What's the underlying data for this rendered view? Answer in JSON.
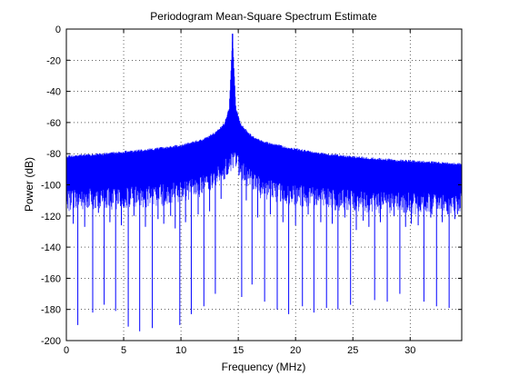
{
  "chart_data": {
    "type": "line",
    "title": "Periodogram Mean-Square Spectrum Estimate",
    "xlabel": "Frequency (MHz)",
    "ylabel": "Power (dB)",
    "xlim": [
      0,
      34.5
    ],
    "ylim": [
      -200,
      0
    ],
    "xticks": [
      0,
      5,
      10,
      15,
      20,
      25,
      30
    ],
    "yticks": [
      0,
      -20,
      -40,
      -60,
      -80,
      -100,
      -120,
      -140,
      -160,
      -180,
      -200
    ],
    "grid": true,
    "grid_style": "dotted",
    "line_color": "#0000ff",
    "peak": {
      "frequency": 14.5,
      "power": -3
    },
    "envelope": {
      "x": [
        0,
        4,
        8,
        10,
        12,
        13,
        13.8,
        14.2,
        14.5,
        14.8,
        15.2,
        16,
        17,
        19,
        22,
        26,
        30,
        34.5
      ],
      "upper": [
        -81,
        -79,
        -76,
        -74,
        -70,
        -66,
        -60,
        -50,
        -3,
        -50,
        -60,
        -67,
        -71,
        -75,
        -79,
        -82,
        -84,
        -86
      ],
      "lower": [
        -103,
        -102,
        -100,
        -98,
        -94,
        -90,
        -84,
        -78,
        -78,
        -78,
        -84,
        -90,
        -95,
        -99,
        -102,
        -104,
        -105,
        -105
      ]
    },
    "deep_nulls": {
      "x": [
        1.0,
        2.3,
        3.3,
        4.3,
        5.4,
        6.4,
        7.5,
        9.9,
        10.9,
        12.0,
        13.0,
        15.3,
        16.2,
        17.3,
        18.4,
        19.4,
        20.6,
        21.6,
        22.7,
        23.7,
        24.8,
        26.9,
        28.0,
        29.1,
        31.2,
        32.3,
        33.4
      ],
      "y": [
        -190,
        -182,
        -177,
        -181,
        -191,
        -194,
        -192,
        -190,
        -183,
        -178,
        -170,
        -172,
        -164,
        -175,
        -180,
        -183,
        -178,
        -182,
        -179,
        -180,
        -177,
        -174,
        -175,
        -170,
        -175,
        -178,
        -179
      ]
    },
    "shallow_nulls": {
      "x": [
        0.6,
        1.6,
        2.8,
        3.8,
        4.8,
        5.9,
        6.9,
        8.0,
        8.5,
        9.1,
        9.5,
        10.4,
        11.5,
        12.5,
        13.5,
        15.7,
        16.7,
        17.8,
        18.9,
        20.0,
        21.1,
        22.2,
        23.2,
        24.3,
        25.3,
        25.9,
        26.4,
        27.4,
        28.6,
        29.6,
        30.1,
        30.7,
        31.8,
        32.8,
        33.9
      ],
      "y": [
        -125,
        -127,
        -118,
        -124,
        -126,
        -120,
        -127,
        -122,
        -125,
        -120,
        -128,
        -124,
        -119,
        -117,
        -109,
        -110,
        -121,
        -119,
        -124,
        -126,
        -119,
        -124,
        -125,
        -121,
        -129,
        -123,
        -127,
        -124,
        -120,
        -127,
        -125,
        -126,
        -121,
        -124,
        -122
      ]
    }
  }
}
